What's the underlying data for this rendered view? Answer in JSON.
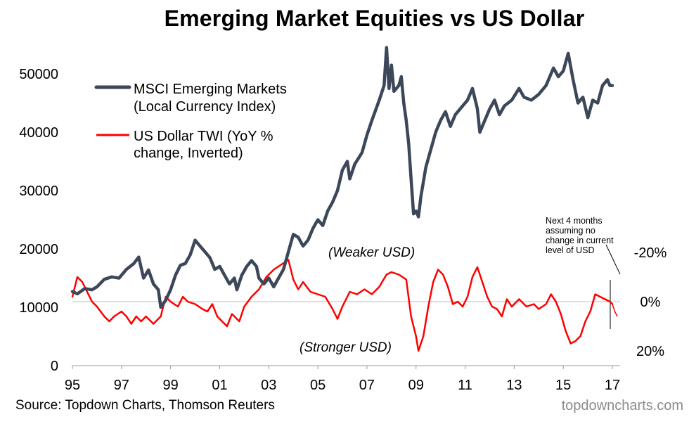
{
  "title": "Emerging Market Equities vs US Dollar",
  "source": "Source: Topdown Charts, Thomson Reuters",
  "brand": "topdowncharts.com",
  "chart_data": {
    "type": "line",
    "title": "Emerging Market Equities vs US Dollar",
    "x_ticks": [
      "95",
      "97",
      "99",
      "01",
      "03",
      "05",
      "07",
      "09",
      "11",
      "13",
      "15",
      "17"
    ],
    "x_range": [
      1995,
      2017.2
    ],
    "left_axis": {
      "ticks": [
        0,
        10000,
        20000,
        30000,
        40000,
        50000
      ],
      "ylim": [
        0,
        55000
      ]
    },
    "right_axis": {
      "ticks": [
        "-20%",
        "0%",
        "20%"
      ],
      "tick_values": [
        -20,
        0,
        20
      ],
      "inverted": true
    },
    "legend": {
      "placement": "top-left",
      "items": [
        {
          "line1": "MSCI Emerging Markets",
          "line2": "(Local Currency Index)",
          "color": "#3c4859"
        },
        {
          "line1": "US Dollar TWI (YoY %",
          "line2": "change, Inverted)",
          "color": "#ff0000"
        }
      ]
    },
    "annotations": {
      "weaker": "(Weaker USD)",
      "stronger": "(Stronger USD)",
      "note": [
        "Next 4 months",
        "assuming no",
        "change in current",
        "level of USD"
      ]
    },
    "series": [
      {
        "name": "MSCI Emerging Markets (Local Currency Index)",
        "axis": "left",
        "color": "#3c4859",
        "points": [
          [
            1995.0,
            12700
          ],
          [
            1995.2,
            12300
          ],
          [
            1995.5,
            13200
          ],
          [
            1995.8,
            13000
          ],
          [
            1996.0,
            13500
          ],
          [
            1996.3,
            14800
          ],
          [
            1996.6,
            15200
          ],
          [
            1996.9,
            15000
          ],
          [
            1997.2,
            16500
          ],
          [
            1997.5,
            17500
          ],
          [
            1997.7,
            18600
          ],
          [
            1997.9,
            15000
          ],
          [
            1998.1,
            16400
          ],
          [
            1998.3,
            14000
          ],
          [
            1998.5,
            13000
          ],
          [
            1998.6,
            10000
          ],
          [
            1998.8,
            11200
          ],
          [
            1999.0,
            13000
          ],
          [
            1999.2,
            15500
          ],
          [
            1999.4,
            17200
          ],
          [
            1999.6,
            17500
          ],
          [
            1999.8,
            19000
          ],
          [
            2000.0,
            21500
          ],
          [
            2000.2,
            20500
          ],
          [
            2000.4,
            19500
          ],
          [
            2000.6,
            18500
          ],
          [
            2000.8,
            16500
          ],
          [
            2001.0,
            17000
          ],
          [
            2001.2,
            15500
          ],
          [
            2001.4,
            14000
          ],
          [
            2001.6,
            15000
          ],
          [
            2001.7,
            13000
          ],
          [
            2001.9,
            15500
          ],
          [
            2002.1,
            17000
          ],
          [
            2002.3,
            18000
          ],
          [
            2002.5,
            17000
          ],
          [
            2002.6,
            15000
          ],
          [
            2002.8,
            14000
          ],
          [
            2003.0,
            15000
          ],
          [
            2003.2,
            13500
          ],
          [
            2003.4,
            15000
          ],
          [
            2003.6,
            16500
          ],
          [
            2003.8,
            19500
          ],
          [
            2004.0,
            22500
          ],
          [
            2004.2,
            22000
          ],
          [
            2004.4,
            20500
          ],
          [
            2004.6,
            21500
          ],
          [
            2004.8,
            23500
          ],
          [
            2005.0,
            25000
          ],
          [
            2005.2,
            24000
          ],
          [
            2005.4,
            26500
          ],
          [
            2005.6,
            28000
          ],
          [
            2005.8,
            30000
          ],
          [
            2006.0,
            33500
          ],
          [
            2006.2,
            35000
          ],
          [
            2006.3,
            32000
          ],
          [
            2006.5,
            34500
          ],
          [
            2006.8,
            36500
          ],
          [
            2007.0,
            39500
          ],
          [
            2007.2,
            42000
          ],
          [
            2007.5,
            45500
          ],
          [
            2007.7,
            48000
          ],
          [
            2007.8,
            54500
          ],
          [
            2007.9,
            47500
          ],
          [
            2008.0,
            51500
          ],
          [
            2008.1,
            47000
          ],
          [
            2008.3,
            48000
          ],
          [
            2008.4,
            49500
          ],
          [
            2008.5,
            45000
          ],
          [
            2008.6,
            42000
          ],
          [
            2008.7,
            38000
          ],
          [
            2008.8,
            32000
          ],
          [
            2008.9,
            26000
          ],
          [
            2009.0,
            26500
          ],
          [
            2009.1,
            25500
          ],
          [
            2009.2,
            29000
          ],
          [
            2009.4,
            34000
          ],
          [
            2009.6,
            37000
          ],
          [
            2009.8,
            40000
          ],
          [
            2010.0,
            42000
          ],
          [
            2010.2,
            43500
          ],
          [
            2010.4,
            41000
          ],
          [
            2010.6,
            43000
          ],
          [
            2010.9,
            44500
          ],
          [
            2011.1,
            45500
          ],
          [
            2011.3,
            47500
          ],
          [
            2011.5,
            44000
          ],
          [
            2011.6,
            40000
          ],
          [
            2011.8,
            42000
          ],
          [
            2012.0,
            44000
          ],
          [
            2012.2,
            45500
          ],
          [
            2012.4,
            43000
          ],
          [
            2012.6,
            44500
          ],
          [
            2012.9,
            45500
          ],
          [
            2013.2,
            47500
          ],
          [
            2013.4,
            46000
          ],
          [
            2013.7,
            45500
          ],
          [
            2014.0,
            46500
          ],
          [
            2014.3,
            48000
          ],
          [
            2014.6,
            51000
          ],
          [
            2014.8,
            49500
          ],
          [
            2015.0,
            50500
          ],
          [
            2015.2,
            53500
          ],
          [
            2015.4,
            49000
          ],
          [
            2015.6,
            45000
          ],
          [
            2015.8,
            46000
          ],
          [
            2016.0,
            42500
          ],
          [
            2016.2,
            45500
          ],
          [
            2016.4,
            45000
          ],
          [
            2016.6,
            48000
          ],
          [
            2016.8,
            49000
          ],
          [
            2016.9,
            48000
          ],
          [
            2017.0,
            48000
          ]
        ]
      },
      {
        "name": "US Dollar TWI (YoY % change, Inverted)",
        "axis": "right",
        "color": "#ff0000",
        "points": [
          [
            1995.0,
            -2
          ],
          [
            1995.2,
            -10
          ],
          [
            1995.4,
            -8
          ],
          [
            1995.6,
            -4
          ],
          [
            1995.8,
            0
          ],
          [
            1996.0,
            2
          ],
          [
            1996.3,
            6
          ],
          [
            1996.5,
            8
          ],
          [
            1996.7,
            6
          ],
          [
            1997.0,
            4
          ],
          [
            1997.2,
            6
          ],
          [
            1997.4,
            9
          ],
          [
            1997.6,
            6
          ],
          [
            1997.8,
            8
          ],
          [
            1998.0,
            6
          ],
          [
            1998.3,
            9
          ],
          [
            1998.6,
            6
          ],
          [
            1998.8,
            -2
          ],
          [
            1999.0,
            0
          ],
          [
            1999.3,
            2
          ],
          [
            1999.5,
            -2
          ],
          [
            1999.7,
            0
          ],
          [
            2000.0,
            1
          ],
          [
            2000.3,
            3
          ],
          [
            2000.5,
            4
          ],
          [
            2000.7,
            1
          ],
          [
            2000.9,
            6
          ],
          [
            2001.1,
            8
          ],
          [
            2001.3,
            10
          ],
          [
            2001.5,
            5
          ],
          [
            2001.8,
            8
          ],
          [
            2002.0,
            2
          ],
          [
            2002.3,
            -2
          ],
          [
            2002.6,
            -5
          ],
          [
            2002.9,
            -10
          ],
          [
            2003.2,
            -13
          ],
          [
            2003.5,
            -15
          ],
          [
            2003.8,
            -17
          ],
          [
            2004.0,
            -9
          ],
          [
            2004.2,
            -5
          ],
          [
            2004.4,
            -8
          ],
          [
            2004.7,
            -4
          ],
          [
            2005.0,
            -3
          ],
          [
            2005.3,
            -2
          ],
          [
            2005.6,
            3
          ],
          [
            2005.8,
            7
          ],
          [
            2006.0,
            2
          ],
          [
            2006.3,
            -4
          ],
          [
            2006.6,
            -3
          ],
          [
            2006.9,
            -5
          ],
          [
            2007.2,
            -3
          ],
          [
            2007.5,
            -6
          ],
          [
            2007.8,
            -11
          ],
          [
            2008.0,
            -12
          ],
          [
            2008.3,
            -11
          ],
          [
            2008.6,
            -9
          ],
          [
            2008.8,
            6
          ],
          [
            2009.0,
            14
          ],
          [
            2009.1,
            20
          ],
          [
            2009.3,
            14
          ],
          [
            2009.5,
            2
          ],
          [
            2009.7,
            -8
          ],
          [
            2009.9,
            -13
          ],
          [
            2010.1,
            -11
          ],
          [
            2010.3,
            -6
          ],
          [
            2010.5,
            1
          ],
          [
            2010.7,
            0
          ],
          [
            2010.9,
            2
          ],
          [
            2011.1,
            -2
          ],
          [
            2011.3,
            -10
          ],
          [
            2011.5,
            -14
          ],
          [
            2011.7,
            -8
          ],
          [
            2011.9,
            -2
          ],
          [
            2012.1,
            2
          ],
          [
            2012.3,
            3
          ],
          [
            2012.5,
            6
          ],
          [
            2012.7,
            -1
          ],
          [
            2012.9,
            2
          ],
          [
            2013.2,
            -1
          ],
          [
            2013.5,
            2
          ],
          [
            2013.8,
            1
          ],
          [
            2014.0,
            3
          ],
          [
            2014.3,
            1
          ],
          [
            2014.5,
            -3
          ],
          [
            2014.7,
            0
          ],
          [
            2014.9,
            5
          ],
          [
            2015.1,
            12
          ],
          [
            2015.3,
            17
          ],
          [
            2015.5,
            16
          ],
          [
            2015.7,
            14
          ],
          [
            2015.9,
            8
          ],
          [
            2016.1,
            4
          ],
          [
            2016.3,
            -3
          ],
          [
            2016.5,
            -2
          ],
          [
            2016.7,
            -1
          ],
          [
            2016.9,
            0
          ],
          [
            2017.0,
            1
          ],
          [
            2017.1,
            4
          ],
          [
            2017.2,
            6
          ]
        ]
      }
    ]
  }
}
